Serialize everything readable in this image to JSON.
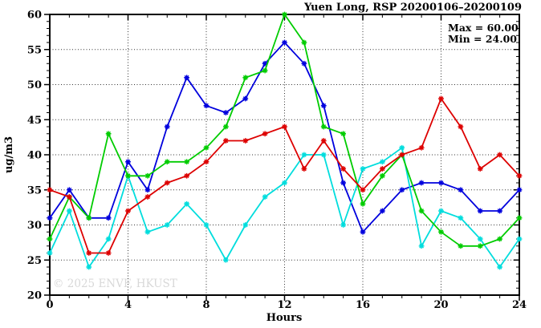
{
  "title": "Yuen Long, RSP 20200106–20200109",
  "annotation": {
    "max_label": "Max = 60.00",
    "min_label": "Min = 24.00"
  },
  "watermark": "© 2025 ENVF, HKUST",
  "colors": {
    "blue": "#0000dd",
    "cyan": "#00dddd",
    "green": "#00cc00",
    "red": "#dd0000",
    "grid": "#333333",
    "axis": "#000000",
    "watermark_gray": "#d8d8d8"
  },
  "chart_data": {
    "type": "line",
    "title": "Yuen Long, RSP 20200106–20200109",
    "xlabel": "Hours",
    "ylabel": "ug/m3",
    "xlim": [
      0,
      24
    ],
    "ylim": [
      20,
      60
    ],
    "x_major_ticks": [
      0,
      4,
      8,
      12,
      16,
      20,
      24
    ],
    "y_major_ticks": [
      20,
      25,
      30,
      35,
      40,
      45,
      50,
      55,
      60
    ],
    "x_minor_step": 1,
    "y_minor_step": 1,
    "grid": "dotted-at-major-ticks",
    "legend_position": "none",
    "marker": "star",
    "annotations": [
      "Max = 60.00",
      "Min = 24.00"
    ],
    "x": [
      0,
      1,
      2,
      3,
      4,
      5,
      6,
      7,
      8,
      9,
      10,
      11,
      12,
      13,
      14,
      15,
      16,
      17,
      18,
      19,
      20,
      21,
      22,
      23,
      24
    ],
    "series": [
      {
        "name": "blue",
        "color": "#0000dd",
        "values": [
          31,
          35,
          31,
          31,
          39,
          35,
          44,
          51,
          47,
          46,
          48,
          53,
          56,
          53,
          47,
          36,
          29,
          32,
          35,
          36,
          36,
          35,
          32,
          32,
          35
        ]
      },
      {
        "name": "cyan",
        "color": "#00dddd",
        "values": [
          26,
          32,
          24,
          28,
          37,
          29,
          30,
          33,
          30,
          25,
          30,
          34,
          36,
          40,
          40,
          30,
          38,
          39,
          41,
          27,
          32,
          31,
          28,
          24,
          28
        ]
      },
      {
        "name": "green",
        "color": "#00cc00",
        "values": [
          28,
          34,
          31,
          43,
          37,
          37,
          39,
          39,
          41,
          44,
          51,
          52,
          60,
          56,
          44,
          43,
          33,
          37,
          40,
          32,
          29,
          27,
          27,
          28,
          31
        ]
      },
      {
        "name": "red",
        "color": "#dd0000",
        "values": [
          35,
          34,
          26,
          26,
          32,
          34,
          36,
          37,
          39,
          42,
          42,
          43,
          44,
          38,
          42,
          38,
          35,
          38,
          40,
          41,
          48,
          44,
          38,
          40,
          37
        ]
      }
    ]
  }
}
